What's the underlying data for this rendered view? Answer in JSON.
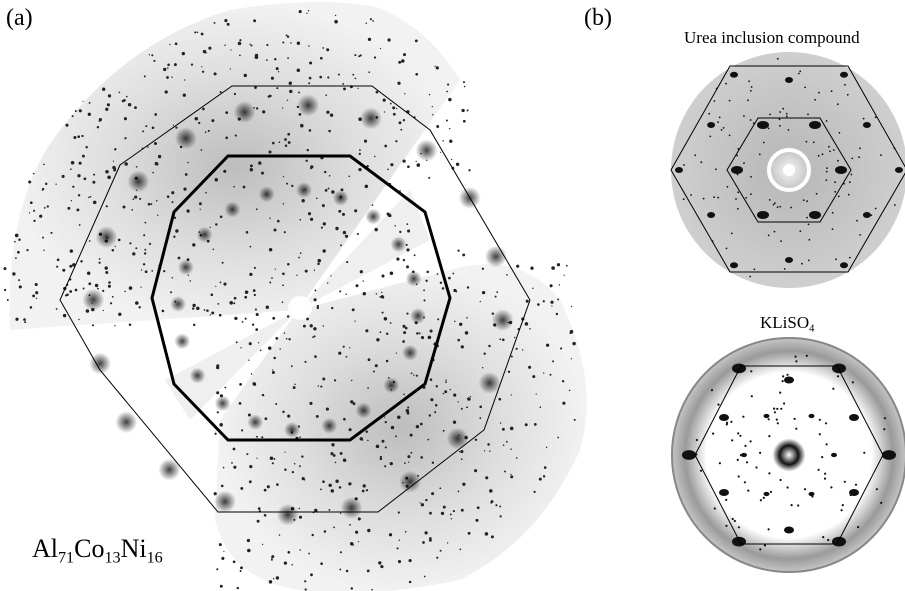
{
  "panel_a": {
    "label": "(a)",
    "formula": {
      "parts": [
        {
          "el": "Al",
          "n": "71"
        },
        {
          "el": "Co",
          "n": "13"
        },
        {
          "el": "Ni",
          "n": "16"
        }
      ]
    }
  },
  "panel_b": {
    "label": "(b)",
    "top": {
      "caption": "Urea inclusion compound"
    },
    "bottom": {
      "caption_base": "KLiSO",
      "caption_sub": "4"
    }
  },
  "colors": {
    "pattern_spots": "#1a1a1a",
    "pattern_bg": "#d6d6d6",
    "outline": "#000000"
  }
}
